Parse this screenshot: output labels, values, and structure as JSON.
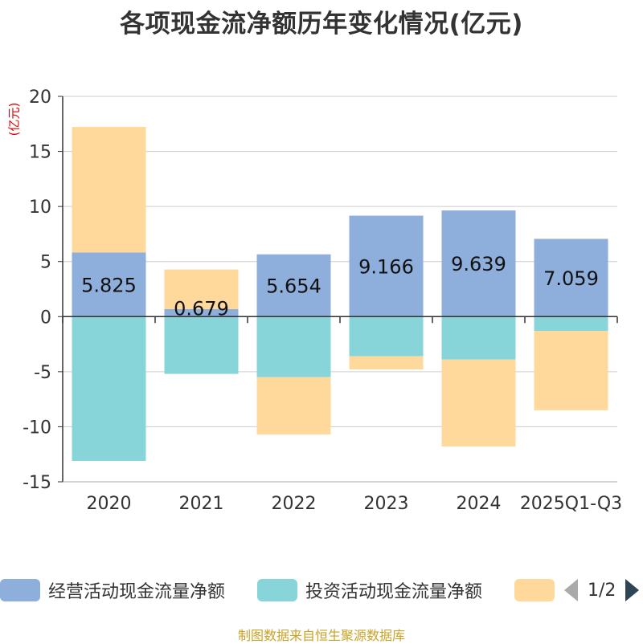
{
  "title": "各项现金流净额历年变化情况(亿元)",
  "unit": "(亿元)",
  "source": "制图数据来自恒生聚源数据库",
  "legend": {
    "items": [
      {
        "label": "经营活动现金流量净额",
        "color": "#8eaedb"
      },
      {
        "label": "投资活动现金流量净额",
        "color": "#87d5d8"
      },
      {
        "label": "",
        "color": "#fed99b"
      }
    ],
    "pager": "1/2"
  },
  "chart_data": {
    "type": "bar",
    "stacked": true,
    "title": "各项现金流净额历年变化情况(亿元)",
    "ylabel": "(亿元)",
    "ylim": [
      -15,
      20
    ],
    "yticks": [
      20,
      15,
      10,
      5,
      0,
      -5,
      -10,
      -15
    ],
    "categories": [
      "2020",
      "2021",
      "2022",
      "2023",
      "2024",
      "2025Q1-Q3"
    ],
    "series": [
      {
        "name": "经营活动现金流量净额",
        "color": "#8eaedb",
        "values": [
          5.825,
          0.679,
          5.654,
          9.166,
          9.639,
          7.059
        ],
        "labels": [
          "5.825",
          "0.679",
          "5.654",
          "9.166",
          "9.639",
          "7.059"
        ]
      },
      {
        "name": "投资活动现金流量净额",
        "color": "#87d5d8",
        "values": [
          -13.1,
          -5.2,
          -5.5,
          -3.6,
          -3.9,
          -1.3
        ]
      },
      {
        "name": "",
        "color": "#fed99b",
        "values": [
          11.4,
          3.6,
          -5.2,
          -1.2,
          -7.9,
          -7.2
        ]
      }
    ]
  }
}
